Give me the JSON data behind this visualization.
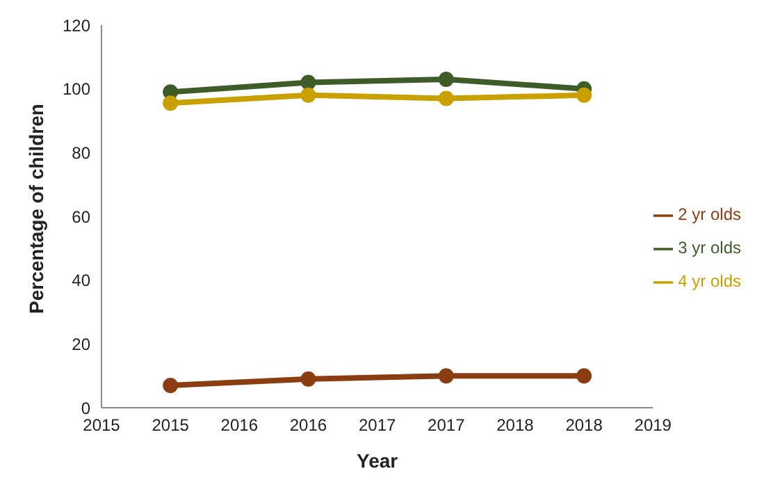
{
  "chart_data": {
    "type": "line",
    "xlabel": "Year",
    "ylabel": "Percentage of children",
    "x": [
      2015,
      2016,
      2017,
      2018
    ],
    "xlim": [
      2014.5,
      2018.5
    ],
    "xticks": [
      {
        "value": 2014.5,
        "label": "2015"
      },
      2015,
      {
        "value": 2015.5,
        "label": "2016"
      },
      2016,
      {
        "value": 2016.5,
        "label": "2017"
      },
      2017,
      {
        "value": 2017.5,
        "label": "2018"
      },
      2018,
      {
        "value": 2018.5,
        "label": "2019"
      }
    ],
    "ylim": [
      0,
      120
    ],
    "yticks": [
      0,
      20,
      40,
      60,
      80,
      100,
      120
    ],
    "grid": false,
    "legend": "right",
    "marker": "circle",
    "line_style": "solid",
    "series": [
      {
        "name": "2 yr olds",
        "color": "#8b3d12",
        "values": [
          7,
          9,
          10,
          10
        ]
      },
      {
        "name": "3 yr olds",
        "color": "#3d5c28",
        "values": [
          99,
          102,
          103,
          100
        ]
      },
      {
        "name": "4 yr olds",
        "color": "#c9a000",
        "values": [
          95.5,
          98,
          97,
          98
        ]
      }
    ]
  }
}
